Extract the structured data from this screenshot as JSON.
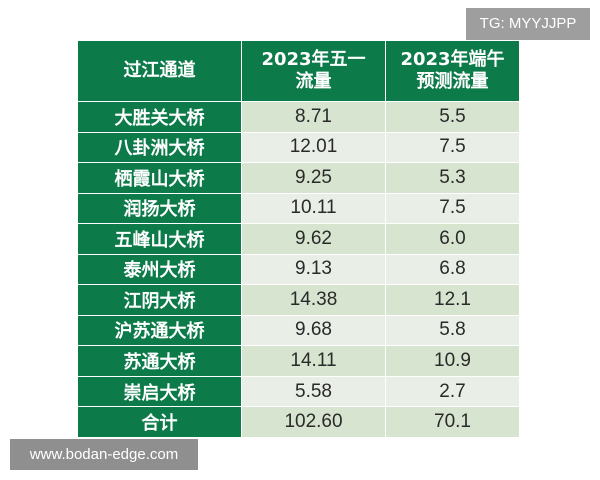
{
  "tag": "TG: MYYJJPP",
  "watermark": "www.bodan-edge.com",
  "chart_data": {
    "type": "table",
    "columns": [
      "过江通道",
      "2023年五一流量",
      "2023年端午预测流量"
    ],
    "header_lines": [
      [
        "过江通道"
      ],
      [
        "2023年五一",
        "流量"
      ],
      [
        "2023年端午",
        "预测流量"
      ]
    ],
    "rows": [
      [
        "大胜关大桥",
        "8.71",
        "5.5"
      ],
      [
        "八卦洲大桥",
        "12.01",
        "7.5"
      ],
      [
        "栖霞山大桥",
        "9.25",
        "5.3"
      ],
      [
        "润扬大桥",
        "10.11",
        "7.5"
      ],
      [
        "五峰山大桥",
        "9.62",
        "6.0"
      ],
      [
        "泰州大桥",
        "9.13",
        "6.8"
      ],
      [
        "江阴大桥",
        "14.38",
        "12.1"
      ],
      [
        "沪苏通大桥",
        "9.68",
        "5.8"
      ],
      [
        "苏通大桥",
        "14.11",
        "10.9"
      ],
      [
        "崇启大桥",
        "5.58",
        "2.7"
      ],
      [
        "合计",
        "102.60",
        "70.1"
      ]
    ]
  }
}
